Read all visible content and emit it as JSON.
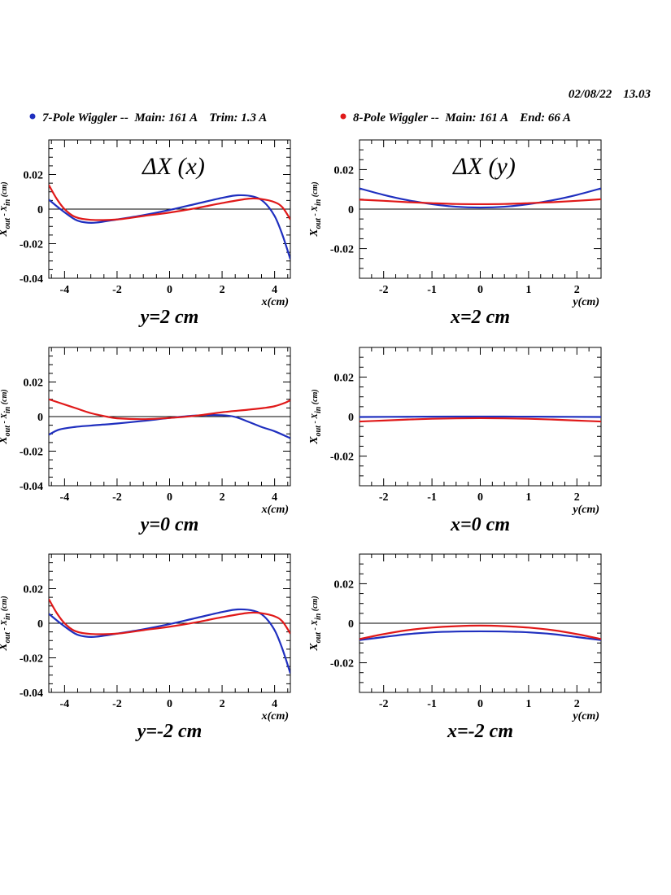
{
  "header": {
    "date": "02/08/22",
    "time": "13.03"
  },
  "legend": [
    {
      "label": "7-Pole Wiggler --  Main: 161 A    Trim: 1.3 A",
      "color": "#1f2fbf"
    },
    {
      "label": "8-Pole Wiggler --  Main: 161 A    End: 66 A",
      "color": "#e01919"
    }
  ],
  "colors": {
    "series_7pole": "#1f2fbf",
    "series_8pole": "#e01919"
  },
  "chart_data": [
    {
      "type": "line",
      "title": "ΔX (x)",
      "caption": "y=2 cm",
      "xlabel": "x(cm)",
      "ylabel": "X_out - X_in (cm)",
      "xlim": [
        -4.6,
        4.6
      ],
      "ylim": [
        -0.04,
        0.04
      ],
      "xticks": [
        -4,
        -2,
        0,
        2,
        4
      ],
      "yticks": [
        -0.04,
        -0.02,
        0,
        0.02
      ],
      "series": [
        {
          "color": "#1f2fbf",
          "x": [
            -4.6,
            -4.2,
            -3.6,
            -3.2,
            -2.8,
            -2.0,
            -1.0,
            0.0,
            1.0,
            2.0,
            2.6,
            3.2,
            3.6,
            4.0,
            4.3,
            4.6
          ],
          "y": [
            0.0055,
            0.0005,
            -0.006,
            -0.0077,
            -0.0078,
            -0.006,
            -0.0035,
            -0.0005,
            0.003,
            0.0065,
            0.008,
            0.0072,
            0.004,
            -0.004,
            -0.015,
            -0.029
          ]
        },
        {
          "color": "#e01919",
          "x": [
            -4.6,
            -4.3,
            -4.0,
            -3.6,
            -3.0,
            -2.0,
            -1.0,
            0.0,
            1.0,
            2.0,
            3.0,
            3.5,
            4.0,
            4.3,
            4.6
          ],
          "y": [
            0.014,
            0.006,
            0.0,
            -0.0045,
            -0.0062,
            -0.006,
            -0.004,
            -0.002,
            0.0005,
            0.0035,
            0.006,
            0.0058,
            0.004,
            0.001,
            -0.006
          ]
        }
      ]
    },
    {
      "type": "line",
      "title": "ΔX (y)",
      "caption": "x=2 cm",
      "xlabel": "y(cm)",
      "ylabel": "X_out - X_in (cm)",
      "xlim": [
        -2.5,
        2.5
      ],
      "ylim": [
        -0.035,
        0.035
      ],
      "xticks": [
        -2,
        -1,
        0,
        1,
        2
      ],
      "yticks": [
        -0.02,
        0,
        0.02
      ],
      "series": [
        {
          "color": "#1f2fbf",
          "x": [
            -2.5,
            -2.0,
            -1.5,
            -1.0,
            -0.5,
            0.0,
            0.5,
            1.0,
            1.5,
            2.0,
            2.5
          ],
          "y": [
            0.0105,
            0.0072,
            0.0045,
            0.0025,
            0.0012,
            0.0008,
            0.0012,
            0.0025,
            0.0045,
            0.0072,
            0.0105
          ]
        },
        {
          "color": "#e01919",
          "x": [
            -2.5,
            -2.0,
            -1.5,
            -1.0,
            -0.5,
            0.0,
            0.5,
            1.0,
            1.5,
            2.0,
            2.5
          ],
          "y": [
            0.0048,
            0.0042,
            0.0035,
            0.003,
            0.0026,
            0.0025,
            0.0026,
            0.003,
            0.0035,
            0.0042,
            0.005
          ]
        }
      ]
    },
    {
      "type": "line",
      "title": "",
      "caption": "y=0 cm",
      "xlabel": "x(cm)",
      "ylabel": "X_out - X_in (cm)",
      "xlim": [
        -4.6,
        4.6
      ],
      "ylim": [
        -0.04,
        0.04
      ],
      "xticks": [
        -4,
        -2,
        0,
        2,
        4
      ],
      "yticks": [
        -0.04,
        -0.02,
        0,
        0.02
      ],
      "series": [
        {
          "color": "#1f2fbf",
          "x": [
            -4.6,
            -4.2,
            -3.6,
            -3.0,
            -2.0,
            -1.0,
            0.0,
            1.0,
            2.0,
            2.5,
            3.0,
            3.5,
            4.0,
            4.6
          ],
          "y": [
            -0.0105,
            -0.0075,
            -0.006,
            -0.0052,
            -0.004,
            -0.0025,
            -0.0008,
            0.0006,
            0.0008,
            -0.0002,
            -0.003,
            -0.006,
            -0.0085,
            -0.0125
          ]
        },
        {
          "color": "#e01919",
          "x": [
            -4.6,
            -4.2,
            -3.6,
            -3.0,
            -2.4,
            -2.0,
            -1.0,
            0.0,
            1.0,
            2.0,
            3.0,
            3.6,
            4.0,
            4.4,
            4.6
          ],
          "y": [
            0.01,
            0.008,
            0.005,
            0.002,
            0.0,
            -0.001,
            -0.0015,
            -0.0008,
            0.0005,
            0.0025,
            0.004,
            0.005,
            0.006,
            0.008,
            0.0095
          ]
        }
      ]
    },
    {
      "type": "line",
      "title": "",
      "caption": "x=0 cm",
      "xlabel": "y(cm)",
      "ylabel": "X_out - X_in (cm)",
      "xlim": [
        -2.5,
        2.5
      ],
      "ylim": [
        -0.035,
        0.035
      ],
      "xticks": [
        -2,
        -1,
        0,
        1,
        2
      ],
      "yticks": [
        -0.02,
        0,
        0.02
      ],
      "series": [
        {
          "color": "#1f2fbf",
          "x": [
            -2.5,
            -1.5,
            -0.5,
            0.0,
            0.5,
            1.5,
            2.5
          ],
          "y": [
            -0.0002,
            -0.0001,
            0.0,
            0.0,
            0.0,
            -0.0001,
            -0.0002
          ]
        },
        {
          "color": "#e01919",
          "x": [
            -2.5,
            -2.0,
            -1.5,
            -1.0,
            -0.5,
            0.0,
            0.5,
            1.0,
            1.5,
            2.0,
            2.5
          ],
          "y": [
            -0.0025,
            -0.002,
            -0.0015,
            -0.0011,
            -0.0009,
            -0.0008,
            -0.0009,
            -0.0011,
            -0.0015,
            -0.002,
            -0.0025
          ]
        }
      ]
    },
    {
      "type": "line",
      "title": "",
      "caption": "y=-2 cm",
      "xlabel": "x(cm)",
      "ylabel": "X_out - X_in (cm)",
      "xlim": [
        -4.6,
        4.6
      ],
      "ylim": [
        -0.04,
        0.04
      ],
      "xticks": [
        -4,
        -2,
        0,
        2,
        4
      ],
      "yticks": [
        -0.04,
        -0.02,
        0,
        0.02
      ],
      "series": [
        {
          "color": "#1f2fbf",
          "x": [
            -4.6,
            -4.2,
            -3.6,
            -3.2,
            -2.8,
            -2.0,
            -1.0,
            0.0,
            1.0,
            2.0,
            2.6,
            3.2,
            3.6,
            4.0,
            4.3,
            4.6
          ],
          "y": [
            0.0055,
            0.0005,
            -0.006,
            -0.0077,
            -0.0078,
            -0.006,
            -0.0035,
            -0.0005,
            0.003,
            0.0065,
            0.008,
            0.0072,
            0.004,
            -0.004,
            -0.015,
            -0.029
          ]
        },
        {
          "color": "#e01919",
          "x": [
            -4.6,
            -4.3,
            -4.0,
            -3.6,
            -3.0,
            -2.0,
            -1.0,
            0.0,
            1.0,
            2.0,
            3.0,
            3.5,
            4.0,
            4.3,
            4.6
          ],
          "y": [
            0.014,
            0.006,
            0.0,
            -0.0045,
            -0.0062,
            -0.006,
            -0.004,
            -0.002,
            0.0005,
            0.0035,
            0.006,
            0.0058,
            0.004,
            0.001,
            -0.006
          ]
        }
      ]
    },
    {
      "type": "line",
      "title": "",
      "caption": "x=-2 cm",
      "xlabel": "y(cm)",
      "ylabel": "X_out - X_in (cm)",
      "xlim": [
        -2.5,
        2.5
      ],
      "ylim": [
        -0.035,
        0.035
      ],
      "xticks": [
        -2,
        -1,
        0,
        1,
        2
      ],
      "yticks": [
        -0.02,
        0,
        0.02
      ],
      "series": [
        {
          "color": "#1f2fbf",
          "x": [
            -2.5,
            -2.0,
            -1.5,
            -1.0,
            -0.5,
            0.0,
            0.5,
            1.0,
            1.5,
            2.0,
            2.5
          ],
          "y": [
            -0.0085,
            -0.007,
            -0.0055,
            -0.0046,
            -0.0042,
            -0.0041,
            -0.0042,
            -0.0046,
            -0.0055,
            -0.007,
            -0.0085
          ]
        },
        {
          "color": "#e01919",
          "x": [
            -2.5,
            -2.0,
            -1.5,
            -1.0,
            -0.5,
            0.0,
            0.5,
            1.0,
            1.5,
            2.0,
            2.5
          ],
          "y": [
            -0.008,
            -0.0055,
            -0.0035,
            -0.0022,
            -0.0015,
            -0.0012,
            -0.0015,
            -0.0022,
            -0.0035,
            -0.0055,
            -0.008
          ]
        }
      ]
    }
  ]
}
